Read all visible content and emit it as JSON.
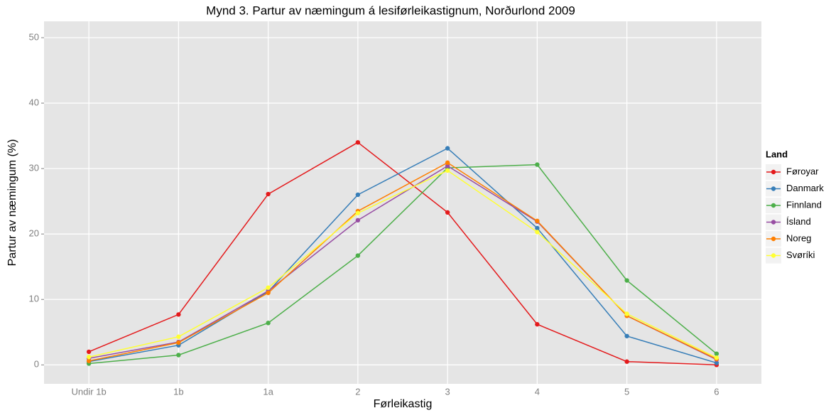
{
  "chart_data": {
    "type": "line",
    "title": "Mynd 3. Partur av næmingum á lesiførleikastignum, Norðurlond 2009",
    "x_label": "Førleikastig",
    "y_label": "Partur av næmingum (%)",
    "legend_title": "Land",
    "legend_position": "right",
    "grid": true,
    "categories": [
      "Undir 1b",
      "1b",
      "1a",
      "2",
      "3",
      "4",
      "5",
      "6"
    ],
    "ylim": [
      -2.9,
      52.5
    ],
    "yticks": [
      0,
      10,
      20,
      30,
      40,
      50
    ],
    "series": [
      {
        "name": "Føroyar",
        "color": "#e41a1c",
        "values": [
          2.0,
          7.7,
          26.1,
          34.0,
          23.3,
          6.2,
          0.5,
          0.0
        ]
      },
      {
        "name": "Danmark",
        "color": "#377eb8",
        "values": [
          0.5,
          3.0,
          11.2,
          26.0,
          33.1,
          20.9,
          4.4,
          0.3
        ]
      },
      {
        "name": "Finnland",
        "color": "#4daf4a",
        "values": [
          0.2,
          1.5,
          6.4,
          16.7,
          30.1,
          30.6,
          12.9,
          1.7
        ]
      },
      {
        "name": "Ísland",
        "color": "#984ea3",
        "values": [
          1.0,
          3.5,
          11.3,
          22.1,
          30.4,
          21.9,
          7.5,
          0.8
        ]
      },
      {
        "name": "Noreg",
        "color": "#ff7f00",
        "values": [
          0.6,
          3.4,
          11.0,
          23.5,
          30.9,
          22.0,
          7.5,
          0.9
        ]
      },
      {
        "name": "Svøríki",
        "color": "#ffff33",
        "values": [
          1.2,
          4.3,
          11.8,
          23.2,
          29.7,
          20.3,
          7.8,
          1.1
        ]
      }
    ]
  }
}
